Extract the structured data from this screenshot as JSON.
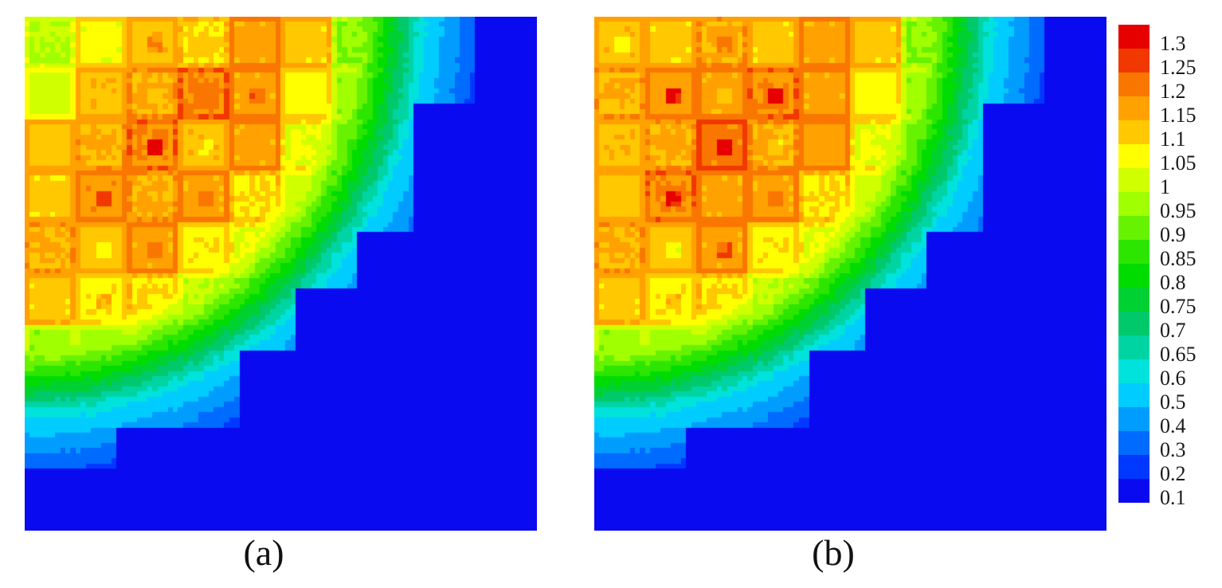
{
  "figure": {
    "background": "#ffffff",
    "caption_a": "(a)",
    "caption_b": "(b)"
  },
  "chart_data": [
    {
      "id": "a",
      "type": "heatmap",
      "label": "(a)",
      "grid_size": [
        10,
        10
      ],
      "assembly_values": [
        [
          1.0,
          1.07,
          1.14,
          1.11,
          1.17,
          1.12,
          0.96,
          0.82,
          0.62,
          0.4
        ],
        [
          1.03,
          1.14,
          1.16,
          1.21,
          1.17,
          1.08,
          0.97,
          0.8,
          0.56,
          0.35
        ],
        [
          1.13,
          1.15,
          1.2,
          1.14,
          1.17,
          1.06,
          0.93,
          0.73,
          0.5,
          0.3
        ],
        [
          1.12,
          1.19,
          1.16,
          1.17,
          1.1,
          1.02,
          0.86,
          0.63,
          0.42,
          0.3
        ],
        [
          1.15,
          1.13,
          1.17,
          1.09,
          1.05,
          0.95,
          0.76,
          0.56,
          0.35,
          0.3
        ],
        [
          1.12,
          1.09,
          1.1,
          1.01,
          0.95,
          0.85,
          0.63,
          0.4,
          0.3,
          0.3
        ],
        [
          0.97,
          0.98,
          1.01,
          0.89,
          0.78,
          0.65,
          0.46,
          0.33,
          0.3,
          0.3
        ],
        [
          0.83,
          0.81,
          0.75,
          0.65,
          0.56,
          0.4,
          0.3,
          0.3,
          0.3,
          0.3
        ],
        [
          0.63,
          0.57,
          0.51,
          0.43,
          0.33,
          0.3,
          0.3,
          0.3,
          0.3,
          0.3
        ],
        [
          0.42,
          0.35,
          0.3,
          0.3,
          0.3,
          0.3,
          0.3,
          0.3,
          0.3,
          0.3
        ]
      ],
      "center_spots": [
        [
          0,
          2,
          0.06
        ],
        [
          1,
          4,
          0.07
        ],
        [
          1,
          2,
          -0.04
        ],
        [
          2,
          2,
          0.13
        ],
        [
          2,
          3,
          -0.05
        ],
        [
          3,
          1,
          0.09
        ],
        [
          3,
          3,
          0.05
        ],
        [
          4,
          1,
          -0.06
        ],
        [
          4,
          2,
          0.06
        ],
        [
          5,
          1,
          0.06
        ]
      ]
    },
    {
      "id": "b",
      "type": "heatmap",
      "label": "(b)",
      "grid_size": [
        10,
        10
      ],
      "assembly_values": [
        [
          1.14,
          1.12,
          1.16,
          1.12,
          1.17,
          1.12,
          0.96,
          0.82,
          0.62,
          0.4
        ],
        [
          1.15,
          1.18,
          1.17,
          1.2,
          1.17,
          1.08,
          0.97,
          0.8,
          0.56,
          0.35
        ],
        [
          1.14,
          1.16,
          1.22,
          1.16,
          1.18,
          1.06,
          0.93,
          0.73,
          0.5,
          0.3
        ],
        [
          1.13,
          1.2,
          1.17,
          1.17,
          1.1,
          1.02,
          0.86,
          0.63,
          0.42,
          0.3
        ],
        [
          1.15,
          1.13,
          1.17,
          1.09,
          1.05,
          0.95,
          0.76,
          0.56,
          0.35,
          0.3
        ],
        [
          1.12,
          1.09,
          1.1,
          1.01,
          0.95,
          0.85,
          0.63,
          0.4,
          0.3,
          0.3
        ],
        [
          0.97,
          0.98,
          1.01,
          0.89,
          0.78,
          0.65,
          0.46,
          0.33,
          0.3,
          0.3
        ],
        [
          0.83,
          0.81,
          0.75,
          0.65,
          0.56,
          0.4,
          0.3,
          0.3,
          0.3,
          0.3
        ],
        [
          0.63,
          0.57,
          0.51,
          0.43,
          0.33,
          0.3,
          0.3,
          0.3,
          0.3,
          0.3
        ],
        [
          0.42,
          0.35,
          0.3,
          0.3,
          0.3,
          0.3,
          0.3,
          0.3,
          0.3,
          0.3
        ]
      ],
      "center_spots": [
        [
          0,
          0,
          -0.06
        ],
        [
          0,
          2,
          0.05
        ],
        [
          1,
          1,
          0.13
        ],
        [
          1,
          3,
          0.11
        ],
        [
          2,
          2,
          0.14
        ],
        [
          2,
          3,
          -0.05
        ],
        [
          1,
          2,
          -0.05
        ],
        [
          3,
          1,
          0.11
        ],
        [
          3,
          3,
          0.05
        ],
        [
          4,
          1,
          -0.07
        ],
        [
          4,
          2,
          0.07
        ],
        [
          5,
          1,
          0.05
        ]
      ]
    }
  ],
  "color_scale": {
    "levels": [
      0.1,
      0.2,
      0.3,
      0.4,
      0.5,
      0.6,
      0.65,
      0.7,
      0.75,
      0.8,
      0.85,
      0.9,
      0.95,
      1.0,
      1.05,
      1.1,
      1.15,
      1.2,
      1.25,
      1.3
    ],
    "colors": [
      "#0a0af0",
      "#0038ff",
      "#006bff",
      "#009dff",
      "#00ccff",
      "#00e2dc",
      "#00d4a3",
      "#00c96b",
      "#00d133",
      "#00dc00",
      "#2ce600",
      "#66f200",
      "#a0ff00",
      "#d0ff00",
      "#ffff00",
      "#ffc800",
      "#ffa100",
      "#f97700",
      "#f13800",
      "#e60000"
    ]
  },
  "legend": {
    "labels": [
      "1.3",
      "1.25",
      "1.2",
      "1.15",
      "1.1",
      "1.05",
      "1",
      "0.95",
      "0.9",
      "0.85",
      "0.8",
      "0.75",
      "0.7",
      "0.65",
      "0.6",
      "0.5",
      "0.4",
      "0.3",
      "0.2",
      "0.1"
    ]
  },
  "core_outline_steps": [
    [
      0.875,
      0.172
    ],
    [
      0.764,
      0.418
    ],
    [
      0.652,
      0.532
    ],
    [
      0.532,
      0.652
    ],
    [
      0.418,
      0.802
    ],
    [
      0.177,
      0.884
    ],
    [
      0.0,
      1.01
    ]
  ],
  "render": {
    "blocks": 100,
    "outside_value": 0.05,
    "envelope": {
      "r_start": 0.55,
      "base": 1.3,
      "slope": 3.0
    }
  }
}
